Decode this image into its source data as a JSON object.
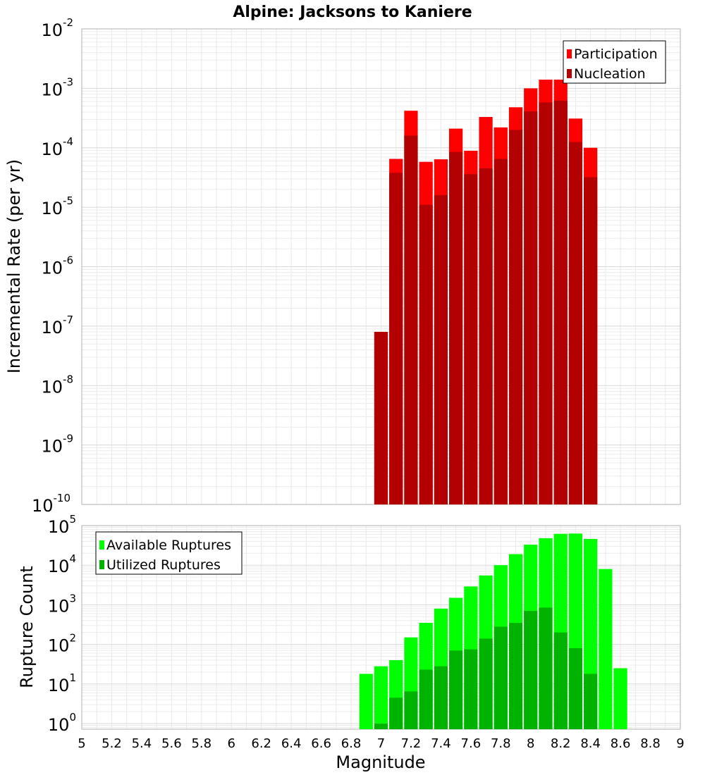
{
  "chart_data": [
    {
      "type": "bar",
      "title": "Alpine: Jacksons to Kaniere",
      "xlabel": "",
      "ylabel": "Incremental Rate (per yr)",
      "yscale": "log",
      "ylim": [
        1e-10,
        0.01
      ],
      "xlim": [
        5,
        9
      ],
      "grid": true,
      "legend_position": "top-right",
      "x": [
        7.0,
        7.1,
        7.2,
        7.3,
        7.4,
        7.5,
        7.6,
        7.7,
        7.8,
        7.9,
        8.0,
        8.1,
        8.2,
        8.3,
        8.4
      ],
      "series": [
        {
          "name": "Participation",
          "color": "#ff0000",
          "values": [
            8e-08,
            6.5e-05,
            0.00042,
            5.8e-05,
            6.4e-05,
            0.00021,
            8.9e-05,
            0.00033,
            0.00022,
            0.00048,
            0.001,
            0.0014,
            0.0014,
            0.00031,
            0.0001
          ]
        },
        {
          "name": "Nucleation",
          "color": "#b30000",
          "values": [
            8e-08,
            3.8e-05,
            0.00016,
            1.1e-05,
            1.6e-05,
            8.5e-05,
            3.6e-05,
            4.5e-05,
            6.5e-05,
            0.0002,
            0.00041,
            0.00058,
            0.00062,
            0.000125,
            3.2e-05
          ]
        }
      ]
    },
    {
      "type": "bar",
      "title": "",
      "xlabel": "Magnitude",
      "ylabel": "Rupture Count",
      "yscale": "log",
      "ylim": [
        0.72,
        100000
      ],
      "xlim": [
        5,
        9
      ],
      "grid": true,
      "legend_position": "top-left",
      "x_ticks": [
        "5",
        "5.2",
        "5.4",
        "5.6",
        "5.8",
        "6",
        "6.2",
        "6.4",
        "6.6",
        "6.8",
        "7",
        "7.2",
        "7.4",
        "7.6",
        "7.8",
        "8",
        "8.2",
        "8.4",
        "8.6",
        "8.8",
        "9"
      ],
      "x": [
        6.9,
        7.0,
        7.1,
        7.2,
        7.3,
        7.4,
        7.5,
        7.6,
        7.7,
        7.8,
        7.9,
        8.0,
        8.1,
        8.2,
        8.3,
        8.4,
        8.5,
        8.6
      ],
      "series": [
        {
          "name": "Available Ruptures",
          "color": "#00ff00",
          "values": [
            18,
            28,
            40,
            150,
            350,
            800,
            1500,
            2900,
            5500,
            10000,
            19000,
            33000,
            48000,
            62000,
            63000,
            46000,
            8000,
            25
          ]
        },
        {
          "name": "Utilized Ruptures",
          "color": "#00b300",
          "values": [
            0,
            1,
            4.5,
            6.5,
            23,
            28,
            70,
            75,
            140,
            280,
            350,
            700,
            850,
            200,
            80,
            18,
            0,
            0
          ]
        }
      ]
    }
  ]
}
